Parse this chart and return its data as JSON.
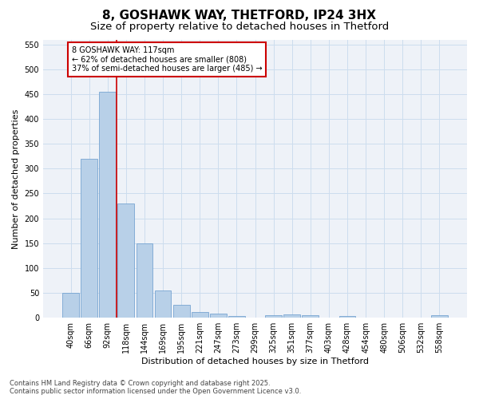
{
  "title_line1": "8, GOSHAWK WAY, THETFORD, IP24 3HX",
  "title_line2": "Size of property relative to detached houses in Thetford",
  "xlabel": "Distribution of detached houses by size in Thetford",
  "ylabel": "Number of detached properties",
  "categories": [
    "40sqm",
    "66sqm",
    "92sqm",
    "118sqm",
    "144sqm",
    "169sqm",
    "195sqm",
    "221sqm",
    "247sqm",
    "273sqm",
    "299sqm",
    "325sqm",
    "351sqm",
    "377sqm",
    "403sqm",
    "428sqm",
    "454sqm",
    "480sqm",
    "506sqm",
    "532sqm",
    "558sqm"
  ],
  "values": [
    50,
    320,
    455,
    230,
    150,
    55,
    25,
    10,
    8,
    3,
    0,
    5,
    6,
    5,
    0,
    3,
    0,
    0,
    0,
    0,
    4
  ],
  "bar_color": "#b8d0e8",
  "bar_edge_color": "#6699cc",
  "grid_color": "#ccddee",
  "bg_color": "#eef2f8",
  "ref_line_color": "#cc0000",
  "annotation_text": "8 GOSHAWK WAY: 117sqm\n← 62% of detached houses are smaller (808)\n37% of semi-detached houses are larger (485) →",
  "annotation_box_color": "#cc0000",
  "ylim": [
    0,
    560
  ],
  "yticks": [
    0,
    50,
    100,
    150,
    200,
    250,
    300,
    350,
    400,
    450,
    500,
    550
  ],
  "footer": "Contains HM Land Registry data © Crown copyright and database right 2025.\nContains public sector information licensed under the Open Government Licence v3.0.",
  "title_fontsize": 11,
  "subtitle_fontsize": 9.5,
  "axis_label_fontsize": 8,
  "tick_fontsize": 7,
  "annotation_fontsize": 7,
  "footer_fontsize": 6
}
